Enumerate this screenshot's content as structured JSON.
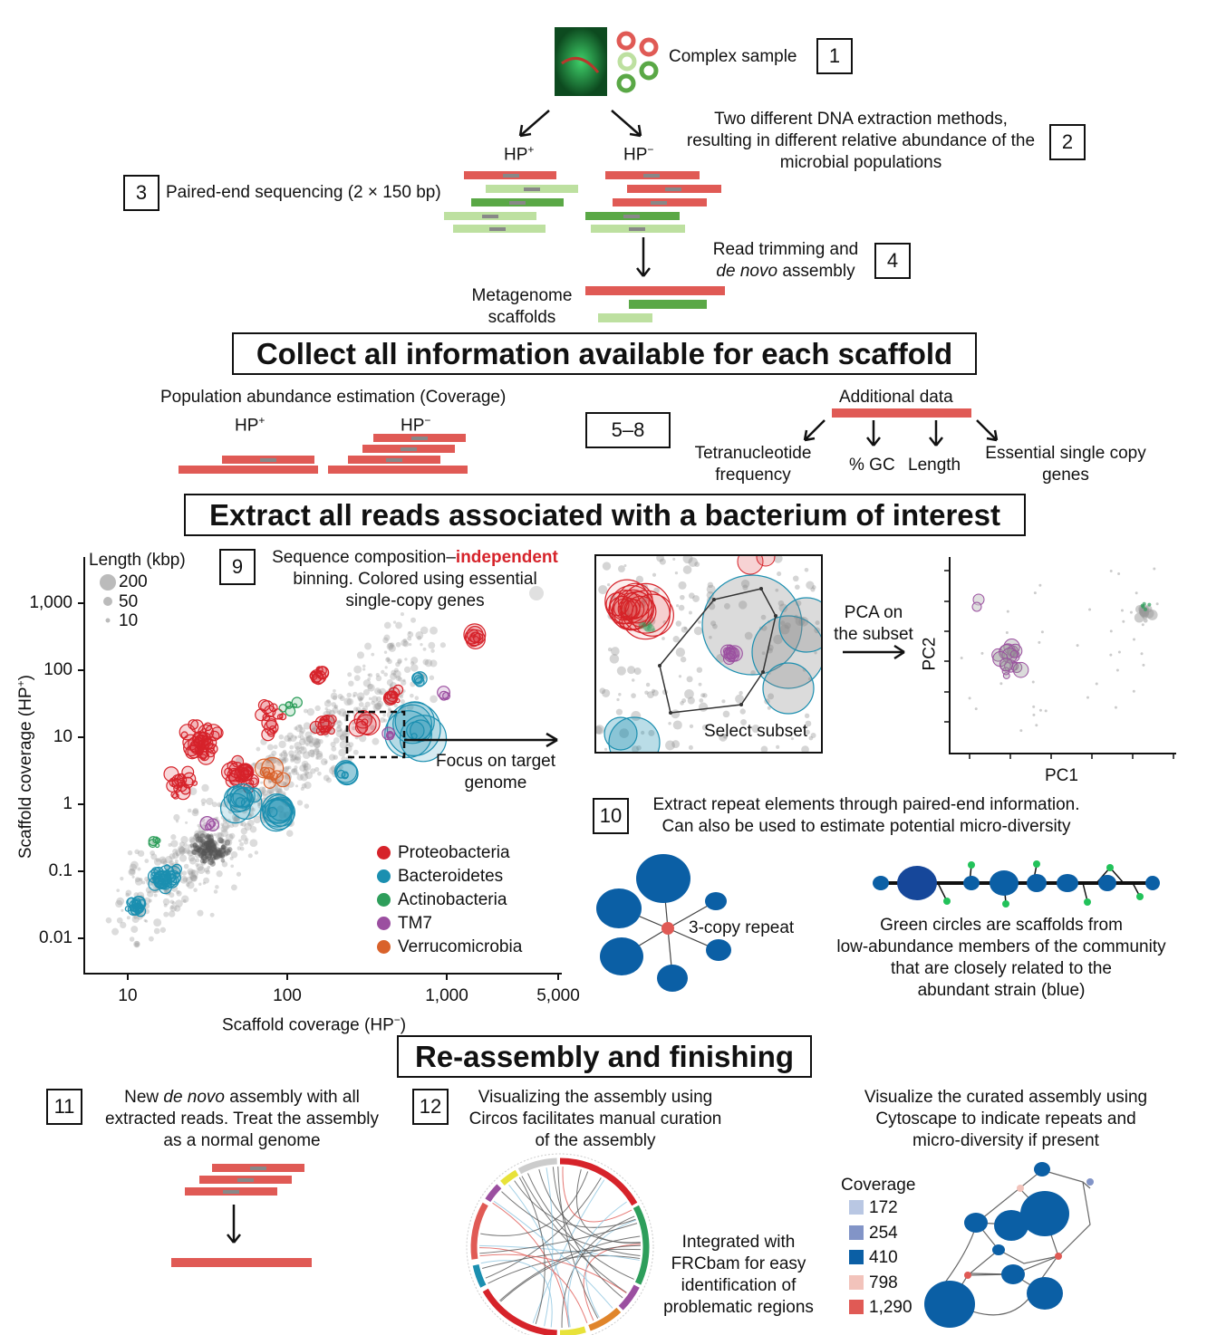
{
  "step1": {
    "label": "Complex sample",
    "num": "1"
  },
  "step2": {
    "line1": "Two different DNA extraction methods,",
    "line2": "resulting in different relative abundance of the",
    "line3": "microbial populations",
    "num": "2",
    "hp_plus": "HP",
    "hp_minus": "HP",
    "sup_plus": "+",
    "sup_minus": "−"
  },
  "step3": {
    "label": "Paired-end sequencing (2 × 150 bp)",
    "num": "3"
  },
  "step4": {
    "line1": "Read trimming and",
    "line2_em": "de novo",
    "line2_rest": " assembly",
    "num": "4"
  },
  "scaffolds": {
    "line1": "Metagenome",
    "line2": "scaffolds"
  },
  "banner1": "Collect all information available for each scaffold",
  "step5_8": {
    "num": "5–8",
    "coverage_title": "Population abundance estimation (Coverage)",
    "hp_plus": "HP",
    "hp_minus": "HP",
    "sup_plus": "+",
    "sup_minus": "−",
    "additional": "Additional data",
    "tetra1": "Tetranucleotide",
    "tetra2": "frequency",
    "gc": "% GC",
    "length": "Length",
    "esc1": "Essential single copy",
    "esc2": "genes"
  },
  "banner2": "Extract all reads associated with a bacterium of interest",
  "step9": {
    "num": "9",
    "line1a": "Sequence composition–",
    "line1b": "independent",
    "line2": "binning. Colored using essential",
    "line3": "single-copy genes",
    "focus1": "Focus on target",
    "focus2": "genome",
    "select": "Select subset",
    "pca1": "PCA on",
    "pca2": "the subset",
    "pc1": "PC1",
    "pc2": "PC2"
  },
  "scatter": {
    "ylabel": "Scaffold coverage (HP",
    "ylabel_sup": "+",
    "xlabel": "Scaffold coverage (HP",
    "xlabel_sup": "−",
    "yticks": [
      "1,000",
      "100",
      "10",
      "1",
      "0.1",
      "0.01"
    ],
    "xticks": [
      "10",
      "100",
      "1,000",
      "5,000"
    ],
    "length_title": "Length (kbp)",
    "length_items": [
      "200",
      "50",
      "10"
    ],
    "phyla": [
      {
        "name": "Proteobacteria",
        "color": "#d6232a"
      },
      {
        "name": "Bacteroidetes",
        "color": "#1b8fb0"
      },
      {
        "name": "Actinobacteria",
        "color": "#2e9e5b"
      },
      {
        "name": "TM7",
        "color": "#9b4fa0"
      },
      {
        "name": "Verrucomicrobia",
        "color": "#d9622b"
      }
    ]
  },
  "step10": {
    "num": "10",
    "line1": "Extract repeat elements through paired-end information.",
    "line2": "Can also be used to estimate potential micro-diversity",
    "repeat": "3-copy repeat",
    "green1": "Green circles are scaffolds from",
    "green2": "low-abundance members of the community",
    "green3": "that are closely related to the",
    "green4": "abundant strain (blue)"
  },
  "banner3": "Re-assembly and finishing",
  "step11": {
    "num": "11",
    "line1a": "New ",
    "line1em": "de novo",
    "line1b": " assembly with all",
    "line2": "extracted reads. Treat the assembly",
    "line3": "as a normal genome"
  },
  "step12": {
    "num": "12",
    "line1": "Visualizing the assembly using",
    "line2": "Circos facilitates manual curation",
    "line3": "of the assembly",
    "frc1": "Integrated with",
    "frc2": "FRCbam for easy",
    "frc3": "identification of",
    "frc4": "problematic regions"
  },
  "cytoscape": {
    "line1": "Visualize the curated assembly using",
    "line2": "Cytoscape to indicate repeats and",
    "line3": "micro-diversity if present",
    "coverage_title": "Coverage",
    "coverage": [
      {
        "value": "172",
        "color": "#b9c7e3"
      },
      {
        "value": "254",
        "color": "#8294c7"
      },
      {
        "value": "410",
        "color": "#0b5fa5"
      },
      {
        "value": "798",
        "color": "#f2c3bb"
      },
      {
        "value": "1,290",
        "color": "#e05a55"
      }
    ]
  }
}
